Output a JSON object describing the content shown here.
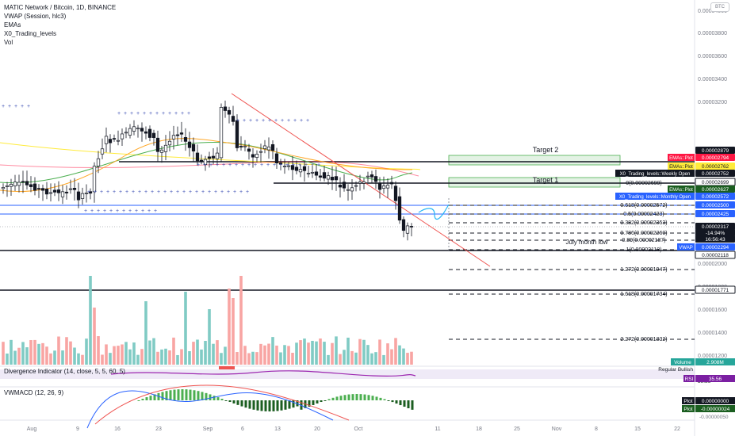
{
  "legend": {
    "title": "MATIC Network / Bitcoin, 1D, BINANCE",
    "line2": "VWAP (Session, hlc3)",
    "line3": "EMAs",
    "line4": "X0_Trading_levels",
    "line5": "Vol"
  },
  "currency_tag": "BTC",
  "price_scale": [
    "0.00004000",
    "0.00003800",
    "0.00003600",
    "0.00003400",
    "0.00003200",
    "0.00002000",
    "0.00001800",
    "0.00001600",
    "0.00001400",
    "0.00001200"
  ],
  "price_tags": [
    {
      "text": "0.00002879",
      "bg": "#131722",
      "fg": "#ffffff"
    },
    {
      "text": "0.00002794",
      "bg": "#ff1744",
      "fg": "#ffffff"
    },
    {
      "text": "0.00002762",
      "bg": "#ffeb3b",
      "fg": "#131722"
    },
    {
      "text": "0.00002752",
      "bg": "#131722",
      "fg": "#ffffff"
    },
    {
      "text": "0.00002699",
      "bg": "#ffffff",
      "fg": "#131722"
    },
    {
      "text": "0.00002627",
      "bg": "#1b5e20",
      "fg": "#ffffff"
    },
    {
      "text": "0.00002572",
      "bg": "#2962ff",
      "fg": "#ffffff"
    },
    {
      "text": "0.00002500",
      "bg": "#2962ff",
      "fg": "#ffffff"
    },
    {
      "text": "0.00002425",
      "bg": "#2962ff",
      "fg": "#ffffff"
    },
    {
      "text": "0.00002317",
      "bg": "#131722",
      "fg": "#ffffff"
    },
    {
      "text": "-14.94%",
      "bg": "#131722",
      "fg": "#ffffff"
    },
    {
      "text": "16:56:43",
      "bg": "#131722",
      "fg": "#ffffff"
    },
    {
      "text": "0.00002294",
      "bg": "#2962ff",
      "fg": "#ffffff"
    },
    {
      "text": "0.00002118",
      "bg": "#ffffff",
      "fg": "#131722"
    },
    {
      "text": "0.00001771",
      "bg": "#ffffff",
      "fg": "#131722"
    }
  ],
  "indicator_labels": [
    {
      "text": "EMAs::Plot",
      "bg": "#ff1744",
      "fg": "#ffffff"
    },
    {
      "text": "EMAs::Plot",
      "bg": "#ffeb3b",
      "fg": "#131722"
    },
    {
      "text": "X0_Trading_levels::Weekly Open",
      "bg": "#131722",
      "fg": "#ffffff"
    },
    {
      "text": "EMAs::Plot",
      "bg": "#1b5e20",
      "fg": "#ffffff"
    },
    {
      "text": "X0_Trading_levels::Monthly Open",
      "bg": "#2962ff",
      "fg": "#ffffff"
    },
    {
      "text": "VWAP",
      "bg": "#2962ff",
      "fg": "#ffffff"
    }
  ],
  "annotations": {
    "target2": "Target 2",
    "target1": "Target 1",
    "july_low": "July month low",
    "fib_0": "0(0.00002699)",
    "fib_0618": "0.618(0.00002572)",
    "fib_05": "0.5(0.00002423)",
    "fib_0382": "0.382(0.00002353)",
    "fib_0786": "0.786(0.00002260)",
    "fib_089": "0.89(0.00002187)",
    "fib_1": "1(0.00002118)",
    "fib_1272": "1.272(0.00001947)",
    "fib_1618": "1.618(0.00001734)",
    "fib_2272": "2.272(0.00001332)"
  },
  "volume": {
    "label": "Volume",
    "value": "2.908M"
  },
  "divergence": {
    "title": "Divergence Indicator (14, close, 5, 5, 60, 5)",
    "signal": "Regular Bullish",
    "value1": "39.86",
    "rsi_label": "RSI",
    "rsi_value": "35.56"
  },
  "vwmacd": {
    "title": "VWMACD (12, 26, 9)",
    "plot1_label": "Plot",
    "plot1_value": "0.00000000",
    "plot2_label": "Plot",
    "plot2_value": "-0.00000024",
    "tick": "-0.00000050"
  },
  "x_axis": [
    "Aug",
    "9",
    "16",
    "23",
    "Sep",
    "6",
    "13",
    "20",
    "Oct",
    "11",
    "18",
    "25",
    "Nov",
    "8",
    "15",
    "22"
  ],
  "colors": {
    "up": "#26a69a",
    "down": "#ef5350",
    "vol_up": "#80cbc4",
    "vol_down": "#f8a5a3",
    "fib_box": "#4caf50",
    "trend": "#ef5350",
    "vwap": "#2962ff"
  }
}
